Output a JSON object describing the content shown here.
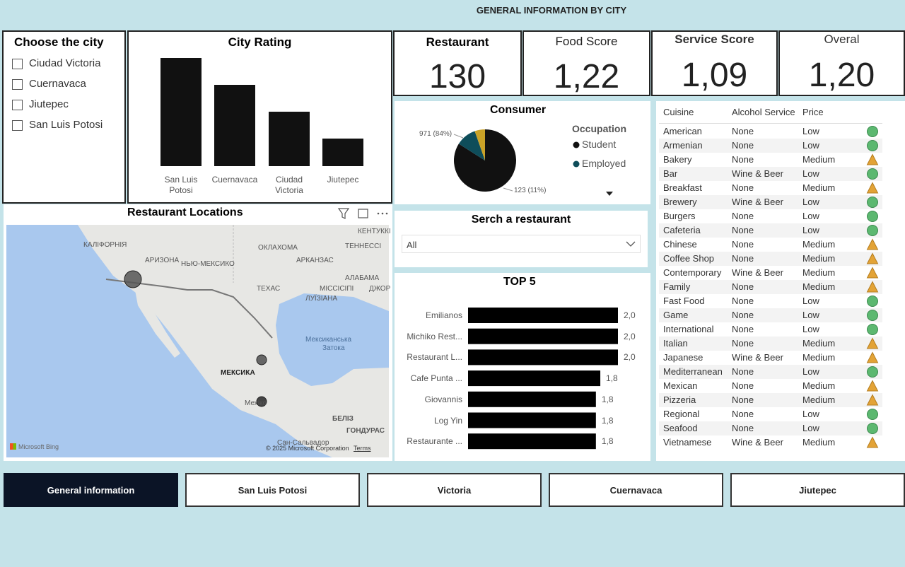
{
  "header": {
    "title": "GENERAL INFORMATION BY CITY"
  },
  "slicer": {
    "title": "Choose the city",
    "options": [
      "Ciudad Victoria",
      "Cuernavaca",
      "Jiutepec",
      "San Luis Potosi"
    ]
  },
  "kpis": [
    {
      "label": "Restaurant",
      "value": 130
    },
    {
      "label": "Food Score",
      "value": "1,22"
    },
    {
      "label": "Service Score",
      "value": "1,09"
    },
    {
      "label": "Overal",
      "value": "1,20"
    }
  ],
  "chart_data": [
    {
      "type": "bar",
      "title": "City Rating",
      "categories": [
        "San Luis Potosi",
        "Cuernavaca",
        "Ciudad Victoria",
        "Jiutepec"
      ],
      "values": [
        1.53,
        1.15,
        0.77,
        0.39
      ],
      "ylim": [
        0,
        1.6
      ],
      "color": "#111111"
    },
    {
      "type": "pie",
      "title": "Consumer",
      "legend_title": "Occupation",
      "categories": [
        "Student",
        "Employed",
        null
      ],
      "values": [
        971,
        123,
        62
      ],
      "value_labels": [
        "971 (84%)",
        "123 (11%)",
        null
      ],
      "colors": [
        "#111111",
        "#0e4d5a",
        "#c9a227"
      ]
    },
    {
      "type": "hbar",
      "title": "TOP 5",
      "categories": [
        "Emilianos",
        "Michiko Rest...",
        "Restaurant L...",
        "Cafe Punta ...",
        "Giovannis",
        "Log Yin",
        "Restaurante ..."
      ],
      "values": [
        2.0,
        2.0,
        2.0,
        1.8,
        1.75,
        1.75,
        1.75
      ],
      "value_labels": [
        "2,0",
        "2,0",
        "2,0",
        "1,8",
        "1,8",
        "1,8",
        "1,8"
      ],
      "xlim": [
        0.3,
        2.0
      ],
      "color": "#000000"
    }
  ],
  "map": {
    "title": "Restaurant Locations",
    "labels": [
      "КАЛІФОРНІЯ",
      "АРИЗОНА",
      "НЬЮ-МЕКСИКО",
      "ОКЛАХОМА",
      "АРКАНЗАС",
      "ТЕННЕССІ",
      "КЕНТУККІ",
      "ТЕХАС",
      "МІССІСІПІ",
      "АЛАБАМА",
      "ЛУЇЗІАНА",
      "ДЖОР",
      "Мексиканська",
      "Затока",
      "МЕКСИКА",
      "Мехіко",
      "БЕЛІЗ",
      "ГОНДУРАС",
      "Сан-Сальвадор"
    ],
    "attribution": "Microsoft Bing",
    "copyright": "© 2025 Microsoft Corporation",
    "terms": "Terms"
  },
  "search": {
    "title": "Serch a restaurant",
    "value": "All"
  },
  "table": {
    "columns": [
      "Cuisine",
      "Alcohol Service",
      "Price"
    ],
    "rows": [
      [
        "American",
        "None",
        "Low"
      ],
      [
        "Armenian",
        "None",
        "Low"
      ],
      [
        "Bakery",
        "None",
        "Medium"
      ],
      [
        "Bar",
        "Wine & Beer",
        "Low"
      ],
      [
        "Breakfast",
        "None",
        "Medium"
      ],
      [
        "Brewery",
        "Wine & Beer",
        "Low"
      ],
      [
        "Burgers",
        "None",
        "Low"
      ],
      [
        "Cafeteria",
        "None",
        "Low"
      ],
      [
        "Chinese",
        "None",
        "Medium"
      ],
      [
        "Coffee Shop",
        "None",
        "Medium"
      ],
      [
        "Contemporary",
        "Wine & Beer",
        "Medium"
      ],
      [
        "Family",
        "None",
        "Medium"
      ],
      [
        "Fast Food",
        "None",
        "Low"
      ],
      [
        "Game",
        "None",
        "Low"
      ],
      [
        "International",
        "None",
        "Low"
      ],
      [
        "Italian",
        "None",
        "Medium"
      ],
      [
        "Japanese",
        "Wine & Beer",
        "Medium"
      ],
      [
        "Mediterranean",
        "None",
        "Low"
      ],
      [
        "Mexican",
        "None",
        "Medium"
      ],
      [
        "Pizzeria",
        "None",
        "Medium"
      ],
      [
        "Regional",
        "None",
        "Low"
      ],
      [
        "Seafood",
        "None",
        "Low"
      ],
      [
        "Vietnamese",
        "Wine & Beer",
        "Medium"
      ]
    ]
  },
  "tabs": [
    "General information",
    "San Luis Potosi",
    "Victoria",
    "Cuernavaca",
    "Jiutepec"
  ]
}
